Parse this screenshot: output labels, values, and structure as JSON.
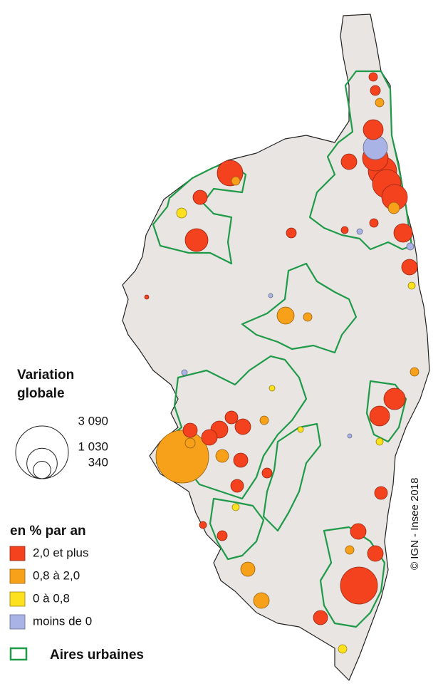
{
  "legend_size": {
    "title_line1": "Variation",
    "title_line2": "globale",
    "ticks": [
      {
        "value": 3090,
        "label": "3 090"
      },
      {
        "value": 1030,
        "label": "1 030"
      },
      340
    ]
  },
  "legend_color": {
    "title": "en % par an",
    "classes": [
      {
        "label": "2,0 et plus",
        "color": "#f4411e",
        "communes": [
          731,
          226,
          578,
          111,
          273,
          442,
          731,
          903,
          903,
          731,
          381,
          273,
          81,
          111,
          81,
          56,
          508,
          442,
          226,
          273,
          325,
          273,
          183,
          226,
          183,
          111,
          183,
          273,
          273,
          1526,
          226,
          111,
          56,
          20
        ]
      },
      {
        "label": "0,8 à 2,0",
        "color": "#f7a01a",
        "communes": [
          3090,
          325,
          273,
          226,
          183,
          144,
          111,
          81,
          81,
          81,
          81,
          81,
          81
        ]
      },
      {
        "label": "0 à 0,8",
        "color": "#fde11f",
        "communes": [
          111,
          81,
          56,
          56,
          56,
          36,
          36
        ]
      },
      {
        "label": "moins de 0",
        "color": "#a9b3e5",
        "communes": [
          652,
          56,
          36,
          36,
          20,
          20
        ]
      }
    ]
  },
  "urban_areas": {
    "label": "Aires urbaines",
    "color": "#1f9a48"
  },
  "credit": "© IGN - Insee 2018"
}
